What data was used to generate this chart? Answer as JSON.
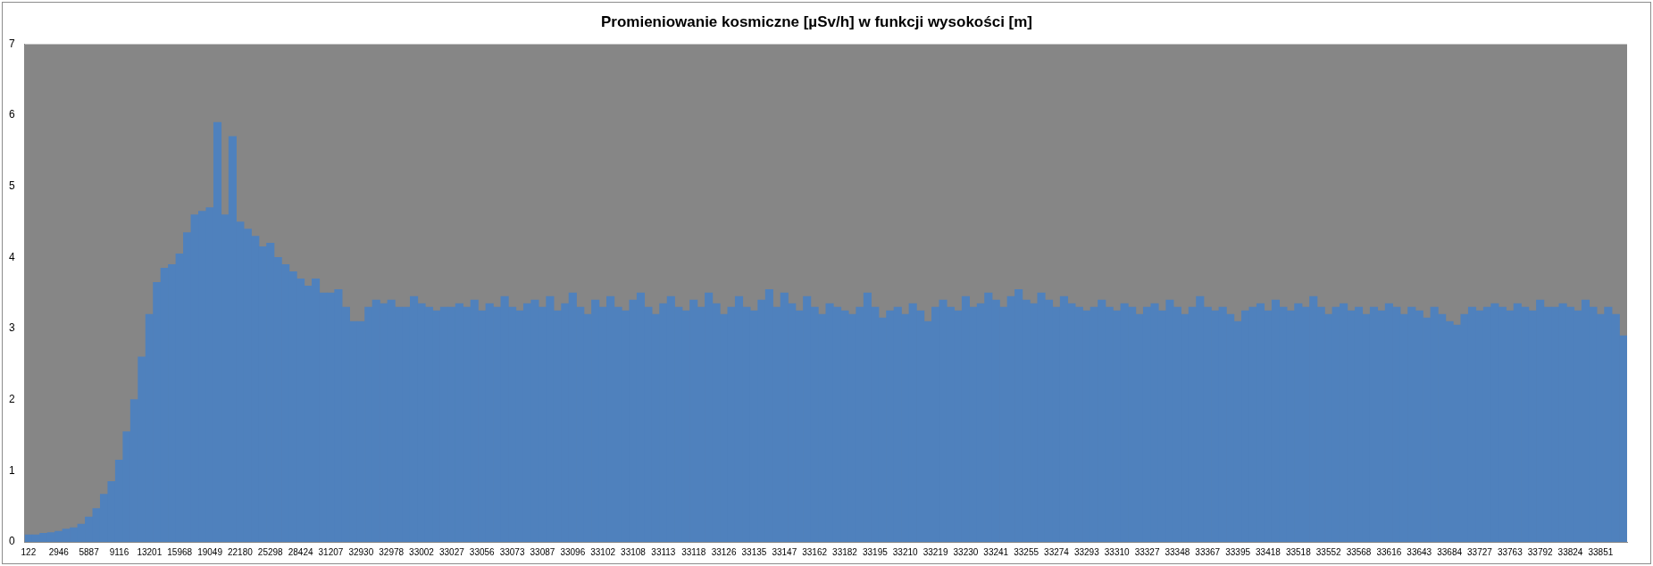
{
  "chart_data": {
    "type": "bar",
    "title": "Promieniowanie kosmiczne [µSv/h] w funkcji wysokości [m]",
    "categories": [
      "122",
      null,
      null,
      null,
      "2946",
      null,
      null,
      null,
      "5887",
      null,
      null,
      null,
      "9116",
      null,
      null,
      null,
      "13201",
      null,
      null,
      null,
      "15968",
      null,
      null,
      null,
      "19049",
      null,
      null,
      null,
      "22180",
      null,
      null,
      null,
      "25298",
      null,
      null,
      null,
      "28424",
      null,
      null,
      null,
      "31207",
      null,
      null,
      null,
      "32930",
      null,
      null,
      null,
      "32978",
      null,
      null,
      null,
      "33002",
      null,
      null,
      null,
      "33027",
      null,
      null,
      null,
      "33056",
      null,
      null,
      null,
      "33073",
      null,
      null,
      null,
      "33087",
      null,
      null,
      null,
      "33096",
      null,
      null,
      null,
      "33102",
      null,
      null,
      null,
      "33108",
      null,
      null,
      null,
      "33113",
      null,
      null,
      null,
      "33118",
      null,
      null,
      null,
      "33126",
      null,
      null,
      null,
      "33135",
      null,
      null,
      null,
      "33147",
      null,
      null,
      null,
      "33162",
      null,
      null,
      null,
      "33182",
      null,
      null,
      null,
      "33195",
      null,
      null,
      null,
      "33210",
      null,
      null,
      null,
      "33219",
      null,
      null,
      null,
      "33230",
      null,
      null,
      null,
      "33241",
      null,
      null,
      null,
      "33255",
      null,
      null,
      null,
      "33274",
      null,
      null,
      null,
      "33293",
      null,
      null,
      null,
      "33310",
      null,
      null,
      null,
      "33327",
      null,
      null,
      null,
      "33348",
      null,
      null,
      null,
      "33367",
      null,
      null,
      null,
      "33395",
      null,
      null,
      null,
      "33418",
      null,
      null,
      null,
      "33518",
      null,
      null,
      null,
      "33552",
      null,
      null,
      null,
      "33568",
      null,
      null,
      null,
      "33616",
      null,
      null,
      null,
      "33643",
      null,
      null,
      null,
      "33684",
      null,
      null,
      null,
      "33727",
      null,
      null,
      null,
      "33763",
      null,
      null,
      null,
      "33792",
      null,
      null,
      null,
      "33824",
      null,
      null,
      null,
      "33851",
      null,
      null,
      null
    ],
    "values": [
      0.1,
      0.1,
      0.12,
      0.13,
      0.15,
      0.18,
      0.2,
      0.25,
      0.35,
      0.47,
      0.67,
      0.85,
      1.15,
      1.55,
      2.0,
      2.6,
      3.2,
      3.65,
      3.85,
      3.9,
      4.05,
      4.35,
      4.6,
      4.65,
      4.7,
      5.9,
      4.6,
      5.7,
      4.5,
      4.4,
      4.3,
      4.15,
      4.2,
      4.0,
      3.9,
      3.8,
      3.7,
      3.6,
      3.7,
      3.5,
      3.5,
      3.55,
      3.3,
      3.1,
      3.1,
      3.3,
      3.4,
      3.35,
      3.4,
      3.3,
      3.3,
      3.45,
      3.35,
      3.3,
      3.25,
      3.3,
      3.3,
      3.35,
      3.3,
      3.4,
      3.25,
      3.35,
      3.3,
      3.45,
      3.3,
      3.25,
      3.35,
      3.4,
      3.3,
      3.45,
      3.25,
      3.35,
      3.5,
      3.3,
      3.2,
      3.4,
      3.3,
      3.45,
      3.3,
      3.25,
      3.4,
      3.5,
      3.3,
      3.2,
      3.35,
      3.45,
      3.3,
      3.25,
      3.4,
      3.3,
      3.5,
      3.35,
      3.2,
      3.3,
      3.45,
      3.3,
      3.25,
      3.4,
      3.55,
      3.3,
      3.5,
      3.35,
      3.25,
      3.45,
      3.3,
      3.2,
      3.35,
      3.3,
      3.25,
      3.2,
      3.3,
      3.5,
      3.3,
      3.15,
      3.25,
      3.3,
      3.2,
      3.35,
      3.25,
      3.1,
      3.3,
      3.4,
      3.3,
      3.25,
      3.45,
      3.3,
      3.35,
      3.5,
      3.4,
      3.3,
      3.45,
      3.55,
      3.4,
      3.35,
      3.5,
      3.4,
      3.3,
      3.45,
      3.35,
      3.3,
      3.25,
      3.3,
      3.4,
      3.3,
      3.25,
      3.35,
      3.3,
      3.2,
      3.3,
      3.35,
      3.25,
      3.4,
      3.3,
      3.2,
      3.3,
      3.45,
      3.3,
      3.25,
      3.3,
      3.2,
      3.1,
      3.25,
      3.3,
      3.35,
      3.25,
      3.4,
      3.3,
      3.25,
      3.35,
      3.3,
      3.45,
      3.3,
      3.2,
      3.3,
      3.35,
      3.25,
      3.3,
      3.2,
      3.3,
      3.25,
      3.35,
      3.3,
      3.2,
      3.3,
      3.25,
      3.15,
      3.3,
      3.2,
      3.1,
      3.05,
      3.2,
      3.3,
      3.25,
      3.3,
      3.35,
      3.3,
      3.25,
      3.35,
      3.3,
      3.25,
      3.4,
      3.3,
      3.3,
      3.35,
      3.3,
      3.25,
      3.4,
      3.3,
      3.2,
      3.3,
      3.2,
      2.9
    ],
    "color": "#4f81bd",
    "ylim": [
      0,
      7
    ],
    "yticks": [
      0,
      1,
      2,
      3,
      4,
      5,
      6,
      7
    ],
    "grid": false,
    "legend": false
  }
}
